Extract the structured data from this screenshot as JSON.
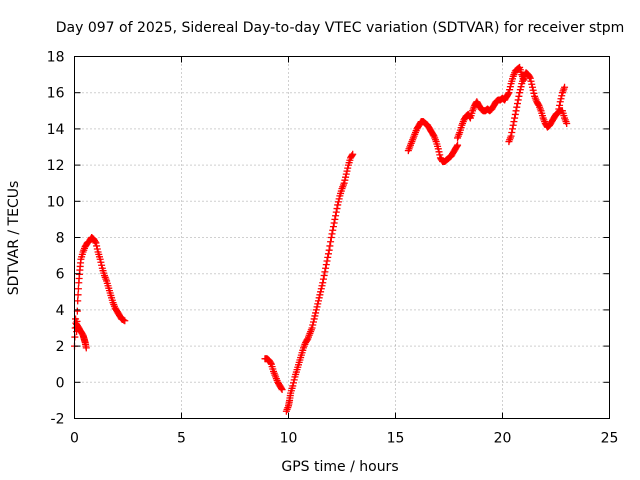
{
  "chart_data": {
    "type": "scatter",
    "title": "Day 097 of 2025, Sidereal Day-to-day VTEC variation (SDTVAR) for receiver stpm",
    "xlabel": "GPS time / hours",
    "ylabel": "SDTVAR / TECUs",
    "xlim": [
      0,
      25
    ],
    "ylim": [
      -2,
      18
    ],
    "x_ticks": [
      "0",
      "5",
      "10",
      "15",
      "20",
      "25"
    ],
    "y_ticks": [
      "-2",
      "0",
      "2",
      "4",
      "6",
      "8",
      "10",
      "12",
      "14",
      "16",
      "18"
    ],
    "grid": true,
    "marker": "plus",
    "color": "#ff0000",
    "series": [
      {
        "points": [
          [
            0.0,
            2.0
          ],
          [
            0.05,
            3.5
          ],
          [
            0.1,
            2.8
          ],
          [
            0.15,
            4.5
          ],
          [
            0.2,
            5.5
          ],
          [
            0.25,
            6.2
          ],
          [
            0.3,
            6.8
          ],
          [
            0.4,
            7.2
          ],
          [
            0.5,
            7.5
          ],
          [
            0.6,
            7.7
          ],
          [
            0.7,
            7.8
          ],
          [
            0.8,
            8.0
          ],
          [
            0.9,
            7.9
          ],
          [
            1.0,
            7.7
          ],
          [
            1.1,
            7.2
          ],
          [
            1.2,
            6.8
          ],
          [
            1.3,
            6.3
          ],
          [
            1.4,
            5.9
          ],
          [
            1.5,
            5.6
          ],
          [
            1.6,
            5.2
          ],
          [
            1.7,
            4.8
          ],
          [
            1.8,
            4.4
          ],
          [
            1.9,
            4.1
          ],
          [
            2.0,
            3.9
          ],
          [
            2.1,
            3.7
          ],
          [
            2.2,
            3.5
          ],
          [
            2.35,
            3.4
          ]
        ]
      },
      {
        "points": [
          [
            0.1,
            3.2
          ],
          [
            0.2,
            3.0
          ],
          [
            0.3,
            2.8
          ],
          [
            0.4,
            2.6
          ],
          [
            0.45,
            2.4
          ],
          [
            0.5,
            2.2
          ],
          [
            0.55,
            1.9
          ]
        ]
      },
      {
        "points": [
          [
            8.9,
            1.3
          ],
          [
            9.0,
            1.3
          ],
          [
            9.1,
            1.2
          ],
          [
            9.2,
            1.0
          ],
          [
            9.3,
            0.6
          ],
          [
            9.4,
            0.3
          ],
          [
            9.5,
            0.0
          ],
          [
            9.6,
            -0.2
          ],
          [
            9.7,
            -0.4
          ]
        ]
      },
      {
        "points": [
          [
            9.9,
            -1.6
          ],
          [
            10.0,
            -1.3
          ],
          [
            10.05,
            -1.0
          ],
          [
            10.1,
            -0.6
          ],
          [
            10.2,
            -0.2
          ],
          [
            10.3,
            0.3
          ],
          [
            10.4,
            0.7
          ],
          [
            10.5,
            1.1
          ],
          [
            10.6,
            1.5
          ],
          [
            10.7,
            1.9
          ],
          [
            10.8,
            2.2
          ],
          [
            10.9,
            2.4
          ],
          [
            11.0,
            2.7
          ],
          [
            11.1,
            3.0
          ],
          [
            11.2,
            3.5
          ],
          [
            11.3,
            4.0
          ],
          [
            11.4,
            4.5
          ],
          [
            11.5,
            5.0
          ],
          [
            11.6,
            5.5
          ],
          [
            11.7,
            6.1
          ],
          [
            11.8,
            6.7
          ],
          [
            11.9,
            7.3
          ],
          [
            12.0,
            8.0
          ],
          [
            12.1,
            8.6
          ],
          [
            12.2,
            9.2
          ],
          [
            12.3,
            9.8
          ],
          [
            12.4,
            10.3
          ],
          [
            12.5,
            10.7
          ],
          [
            12.6,
            11.0
          ],
          [
            12.7,
            11.5
          ],
          [
            12.8,
            12.0
          ],
          [
            12.9,
            12.4
          ],
          [
            13.0,
            12.6
          ]
        ]
      },
      {
        "points": [
          [
            15.6,
            12.8
          ],
          [
            15.7,
            13.1
          ],
          [
            15.8,
            13.4
          ],
          [
            15.9,
            13.7
          ],
          [
            16.0,
            14.0
          ],
          [
            16.1,
            14.2
          ],
          [
            16.2,
            14.4
          ],
          [
            16.3,
            14.4
          ],
          [
            16.4,
            14.3
          ],
          [
            16.5,
            14.2
          ],
          [
            16.6,
            14.0
          ],
          [
            16.7,
            13.8
          ],
          [
            16.8,
            13.6
          ],
          [
            16.9,
            13.3
          ],
          [
            17.0,
            12.9
          ],
          [
            17.1,
            12.4
          ],
          [
            17.2,
            12.2
          ],
          [
            17.3,
            12.2
          ],
          [
            17.4,
            12.3
          ],
          [
            17.5,
            12.4
          ],
          [
            17.6,
            12.5
          ],
          [
            17.7,
            12.7
          ],
          [
            17.8,
            12.9
          ],
          [
            17.9,
            13.1
          ]
        ]
      },
      {
        "points": [
          [
            17.9,
            13.5
          ],
          [
            18.0,
            13.8
          ],
          [
            18.1,
            14.2
          ],
          [
            18.2,
            14.5
          ],
          [
            18.3,
            14.7
          ],
          [
            18.4,
            14.8
          ],
          [
            18.5,
            14.6
          ],
          [
            18.6,
            15.0
          ],
          [
            18.7,
            15.3
          ],
          [
            18.8,
            15.5
          ],
          [
            18.9,
            15.3
          ],
          [
            19.0,
            15.1
          ],
          [
            19.1,
            15.0
          ],
          [
            19.2,
            15.0
          ],
          [
            19.3,
            15.1
          ],
          [
            19.4,
            15.0
          ],
          [
            19.5,
            15.1
          ],
          [
            19.6,
            15.3
          ],
          [
            19.7,
            15.5
          ],
          [
            19.8,
            15.6
          ],
          [
            19.9,
            15.6
          ],
          [
            20.0,
            15.7
          ],
          [
            20.1,
            15.6
          ],
          [
            20.2,
            15.8
          ],
          [
            20.3,
            16.0
          ],
          [
            20.4,
            16.5
          ],
          [
            20.5,
            16.9
          ],
          [
            20.6,
            17.2
          ],
          [
            20.7,
            17.3
          ],
          [
            20.8,
            17.4
          ],
          [
            20.9,
            17.0
          ],
          [
            21.0,
            16.7
          ]
        ]
      },
      {
        "points": [
          [
            20.3,
            13.3
          ],
          [
            20.4,
            13.6
          ],
          [
            20.5,
            14.2
          ],
          [
            20.6,
            14.8
          ],
          [
            20.7,
            15.4
          ],
          [
            20.8,
            16.0
          ],
          [
            20.9,
            16.5
          ],
          [
            21.0,
            16.9
          ],
          [
            21.1,
            17.1
          ],
          [
            21.2,
            17.0
          ],
          [
            21.3,
            16.8
          ],
          [
            21.4,
            16.3
          ],
          [
            21.5,
            15.8
          ],
          [
            21.6,
            15.5
          ],
          [
            21.7,
            15.3
          ],
          [
            21.8,
            15.0
          ],
          [
            21.9,
            14.6
          ],
          [
            22.0,
            14.3
          ],
          [
            22.1,
            14.1
          ],
          [
            22.2,
            14.2
          ],
          [
            22.3,
            14.4
          ],
          [
            22.4,
            14.6
          ],
          [
            22.5,
            14.8
          ],
          [
            22.6,
            14.9
          ],
          [
            22.7,
            15.0
          ],
          [
            22.8,
            15.0
          ],
          [
            22.9,
            14.6
          ],
          [
            23.0,
            14.3
          ]
        ]
      },
      {
        "points": [
          [
            22.6,
            14.9
          ],
          [
            22.7,
            15.5
          ],
          [
            22.8,
            16.0
          ],
          [
            22.9,
            16.3
          ]
        ]
      }
    ]
  }
}
